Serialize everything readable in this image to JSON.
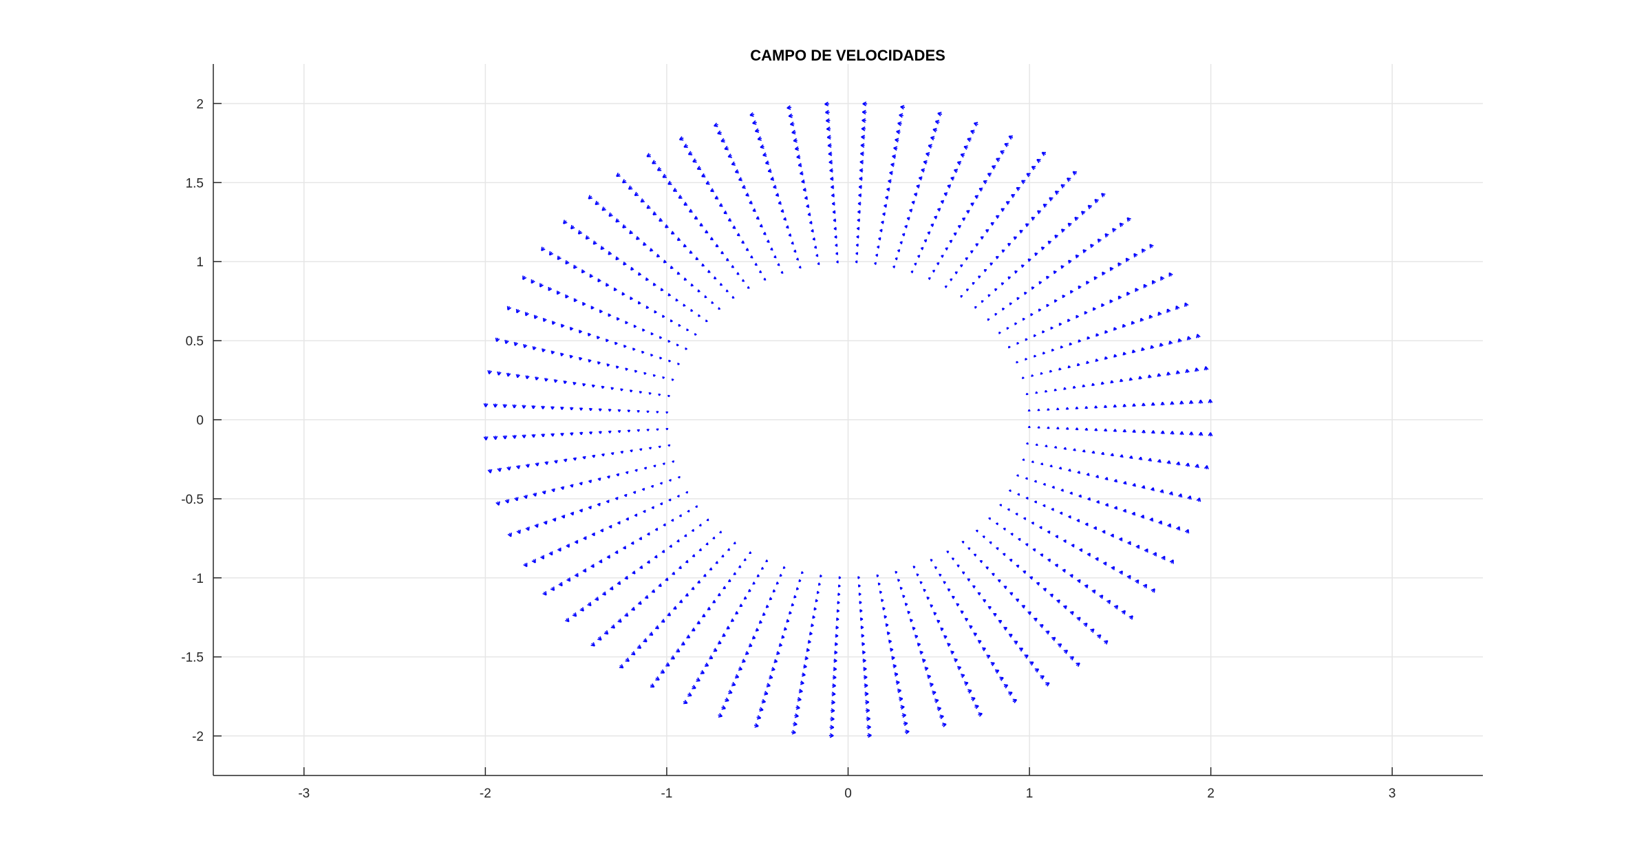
{
  "chart_data": {
    "type": "quiver",
    "title": "CAMPO DE VELOCIDADES",
    "xlabel": "",
    "ylabel": "",
    "xlim": [
      -3.5,
      3.5
    ],
    "ylim": [
      -2.25,
      2.25
    ],
    "xticks": [
      -3,
      -2,
      -1,
      0,
      1,
      2,
      3
    ],
    "xtick_labels": [
      "-3",
      "-2",
      "-1",
      "0",
      "1",
      "2",
      "3"
    ],
    "yticks": [
      -2,
      -1.5,
      -1,
      -0.5,
      0,
      0.5,
      1,
      1.5,
      2
    ],
    "ytick_labels": [
      "-2",
      "-1.5",
      "-1",
      "-0.5",
      "0",
      "0.5",
      "1",
      "1.5",
      "2"
    ],
    "grid": true,
    "arrow_color": "#0000ff",
    "field": {
      "r_min": 1,
      "r_max": 2,
      "n_radial": 20,
      "n_angular": 60,
      "theta_start_deg": 3,
      "theta_step_deg": 6,
      "vx": "-r*sin(theta)",
      "vy": "r*cos(theta)"
    }
  }
}
